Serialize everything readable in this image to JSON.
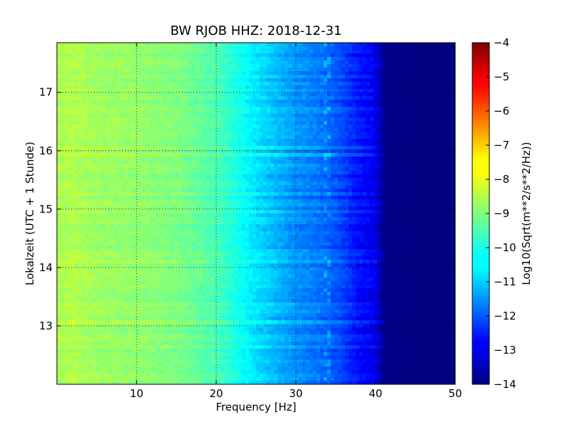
{
  "chart_data": {
    "type": "heatmap",
    "title": "BW RJOB HHZ: 2018-12-31",
    "xlabel": "Frequency [Hz]",
    "ylabel": "Lokalzeit (UTC + 1 Stunde)",
    "xlim": [
      0,
      50
    ],
    "ylim": [
      17.85,
      12.0
    ],
    "x_ticks": [
      10,
      20,
      30,
      40,
      50
    ],
    "y_ticks": [
      13,
      14,
      15,
      16,
      17
    ],
    "grid": true,
    "colorbar": {
      "label": "Log10(Sqrt(m**2/s**2/Hz))",
      "range": [
        -14,
        -4
      ],
      "ticks": [
        -4,
        -5,
        -6,
        -7,
        -8,
        -9,
        -10,
        -11,
        -12,
        -13,
        -14
      ],
      "colormap": "jet"
    },
    "spectral_profile": {
      "frequency_hz": [
        0,
        2,
        5,
        10,
        15,
        20,
        22,
        25,
        28,
        30,
        33,
        35,
        38,
        40,
        41,
        45,
        50
      ],
      "log10_psd": [
        -8.6,
        -8.5,
        -8.7,
        -8.8,
        -9.0,
        -9.5,
        -9.9,
        -10.5,
        -11.0,
        -11.3,
        -11.6,
        -11.9,
        -12.6,
        -12.9,
        -13.9,
        -14.0,
        -14.0
      ]
    },
    "spectral_line_hz": 34
  }
}
